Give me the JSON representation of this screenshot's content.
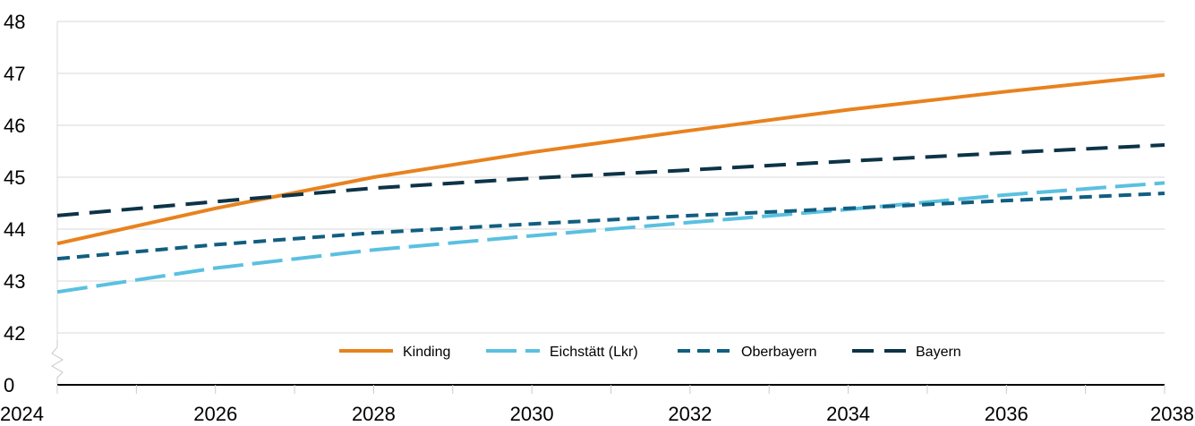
{
  "chart_data": {
    "type": "line",
    "title": "",
    "xlabel": "",
    "ylabel": "",
    "x": [
      2024,
      2026,
      2028,
      2030,
      2032,
      2034,
      2036,
      2038
    ],
    "xlim": [
      2024,
      2038
    ],
    "x_tick_labels": [
      "2024",
      "2026",
      "2028",
      "2030",
      "2032",
      "2034",
      "2036",
      "2038"
    ],
    "y_tick_values": [
      0,
      42,
      43,
      44,
      45,
      46,
      47,
      48
    ],
    "y_tick_labels": [
      "0",
      "42",
      "43",
      "44",
      "45",
      "46",
      "47",
      "48"
    ],
    "y_axis_break": true,
    "grid": "horizontal",
    "legend_position": "bottom-center",
    "series": [
      {
        "name": "Kinding",
        "color": "#E8821E",
        "dash": "solid",
        "values": [
          43.72,
          44.4,
          45.0,
          45.48,
          45.9,
          46.3,
          46.65,
          46.97
        ]
      },
      {
        "name": "Eichstätt (Lkr)",
        "color": "#5BC0E0",
        "dash": "long-dash",
        "values": [
          42.79,
          43.25,
          43.6,
          43.87,
          44.13,
          44.38,
          44.66,
          44.89
        ]
      },
      {
        "name": "Oberbayern",
        "color": "#115E80",
        "dash": "short-dash",
        "values": [
          43.43,
          43.7,
          43.93,
          44.1,
          44.26,
          44.4,
          44.55,
          44.69
        ]
      },
      {
        "name": "Bayern",
        "color": "#0D3347",
        "dash": "medium-dash",
        "values": [
          44.26,
          44.53,
          44.79,
          44.98,
          45.14,
          45.31,
          45.47,
          45.62
        ]
      }
    ]
  }
}
